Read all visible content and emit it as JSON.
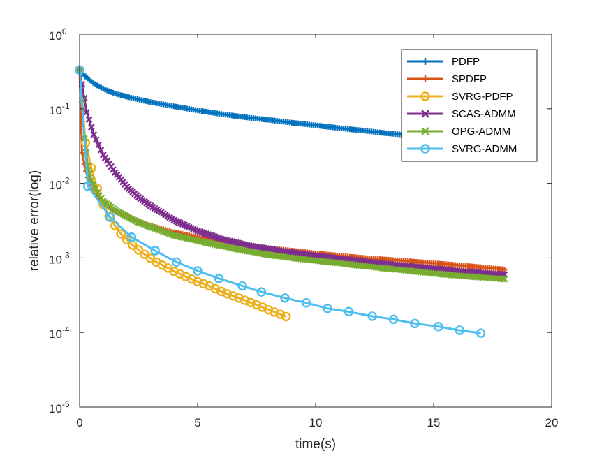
{
  "chart_data": {
    "type": "line",
    "xlabel": "time(s)",
    "ylabel": "relative error(log)",
    "xlim": [
      0,
      20
    ],
    "ylim": [
      1e-05,
      1
    ],
    "yscale": "log",
    "legend_position": "top-right",
    "xticks": [
      {
        "value": 0,
        "label": "0"
      },
      {
        "value": 5,
        "label": "5"
      },
      {
        "value": 10,
        "label": "10"
      },
      {
        "value": 15,
        "label": "15"
      },
      {
        "value": 20,
        "label": "20"
      }
    ],
    "yticks": [
      {
        "value": 1e-05,
        "base": "10",
        "exp": "-5"
      },
      {
        "value": 0.0001,
        "base": "10",
        "exp": "-4"
      },
      {
        "value": 0.001,
        "base": "10",
        "exp": "-3"
      },
      {
        "value": 0.01,
        "base": "10",
        "exp": "-2"
      },
      {
        "value": 0.1,
        "base": "10",
        "exp": "-1"
      },
      {
        "value": 1,
        "base": "10",
        "exp": "0"
      }
    ],
    "series": [
      {
        "name": "PDFP",
        "color": "#0072BD",
        "marker": "plus",
        "x": [
          0,
          0.25,
          0.5,
          1,
          1.5,
          2,
          3,
          4,
          5,
          6,
          7,
          8,
          9,
          10,
          11,
          12,
          13,
          14,
          15,
          16,
          17,
          18
        ],
        "y": [
          0.33,
          0.27,
          0.23,
          0.185,
          0.16,
          0.145,
          0.123,
          0.108,
          0.095,
          0.085,
          0.077,
          0.071,
          0.065,
          0.06,
          0.055,
          0.051,
          0.047,
          0.044,
          0.041,
          0.038,
          0.036,
          0.034
        ],
        "dense": true
      },
      {
        "name": "SPDFP",
        "color": "#D95319",
        "marker": "plus",
        "x": [
          0,
          0.1,
          0.2,
          0.35,
          0.5,
          0.75,
          1,
          1.5,
          2,
          2.5,
          3,
          4,
          5,
          6,
          7,
          8,
          9,
          10,
          11,
          12,
          13,
          14,
          15,
          16,
          17,
          18
        ],
        "y": [
          0.33,
          0.026,
          0.018,
          0.012,
          0.0093,
          0.0068,
          0.0055,
          0.0042,
          0.0036,
          0.0031,
          0.0027,
          0.0022,
          0.0019,
          0.00165,
          0.0015,
          0.00135,
          0.00125,
          0.00115,
          0.00107,
          0.001,
          0.00095,
          0.0009,
          0.00085,
          0.0008,
          0.00075,
          0.0007
        ],
        "dense": true
      },
      {
        "name": "SVRG-PDFP",
        "color": "#EDB120",
        "marker": "circle",
        "x": [
          0,
          0.25,
          0.5,
          0.75,
          1,
          1.25,
          1.5,
          1.75,
          2,
          2.25,
          2.5,
          2.75,
          3,
          3.25,
          3.5,
          3.75,
          4,
          4.25,
          4.5,
          4.75,
          5,
          5.25,
          5.5,
          5.75,
          6,
          6.25,
          6.5,
          6.75,
          7,
          7.25,
          7.5,
          7.75,
          8,
          8.25,
          8.5,
          8.75
        ],
        "y": [
          0.33,
          0.035,
          0.016,
          0.0085,
          0.0052,
          0.0036,
          0.0027,
          0.0021,
          0.00175,
          0.00148,
          0.00128,
          0.00112,
          0.00099,
          0.00088,
          0.0008,
          0.00073,
          0.00066,
          0.00061,
          0.00056,
          0.00052,
          0.00048,
          0.00045,
          0.00042,
          0.000385,
          0.000355,
          0.00033,
          0.00031,
          0.00029,
          0.00027,
          0.000252,
          0.000235,
          0.000218,
          0.000202,
          0.000188,
          0.000175,
          0.000163
        ]
      },
      {
        "name": "SCAS-ADMM",
        "color": "#7E2F8E",
        "marker": "cross",
        "x": [
          0,
          0.3,
          0.6,
          1,
          1.5,
          2,
          2.5,
          3,
          4,
          5,
          6,
          7,
          8,
          9,
          10,
          11,
          12,
          13,
          14,
          15,
          16,
          17,
          18
        ],
        "y": [
          0.33,
          0.09,
          0.045,
          0.024,
          0.014,
          0.009,
          0.0065,
          0.005,
          0.0032,
          0.0023,
          0.0018,
          0.0015,
          0.00132,
          0.00118,
          0.00107,
          0.00098,
          0.0009,
          0.00083,
          0.00077,
          0.00072,
          0.00067,
          0.00063,
          0.0006
        ],
        "dense": true
      },
      {
        "name": "OPG-ADMM",
        "color": "#77AC30",
        "marker": "cross",
        "x": [
          0,
          0.1,
          0.2,
          0.35,
          0.5,
          0.75,
          1,
          1.5,
          2,
          2.5,
          3,
          4,
          5,
          6,
          7,
          8,
          9,
          10,
          11,
          12,
          13,
          14,
          15,
          16,
          17,
          18
        ],
        "y": [
          0.33,
          0.13,
          0.04,
          0.017,
          0.011,
          0.0075,
          0.0058,
          0.0044,
          0.0036,
          0.003,
          0.0026,
          0.002,
          0.0017,
          0.00145,
          0.00125,
          0.0011,
          0.001,
          0.00092,
          0.00085,
          0.00078,
          0.00072,
          0.00067,
          0.00062,
          0.00058,
          0.00055,
          0.00052
        ],
        "dense": true
      },
      {
        "name": "SVRG-ADMM",
        "color": "#4DBEEE",
        "marker": "circle",
        "x": [
          0,
          0.35,
          1.3,
          2.2,
          3.2,
          4.1,
          5,
          5.9,
          6.9,
          7.7,
          8.7,
          9.6,
          10.5,
          11.4,
          12.4,
          13.3,
          14.2,
          15.2,
          16.1,
          17
        ],
        "y": [
          0.33,
          0.0092,
          0.0035,
          0.0019,
          0.00125,
          0.00088,
          0.00067,
          0.00053,
          0.00042,
          0.00035,
          0.00029,
          0.00025,
          0.00021,
          0.00019,
          0.000165,
          0.00015,
          0.000132,
          0.00012,
          0.000107,
          9.8e-05
        ]
      }
    ]
  }
}
